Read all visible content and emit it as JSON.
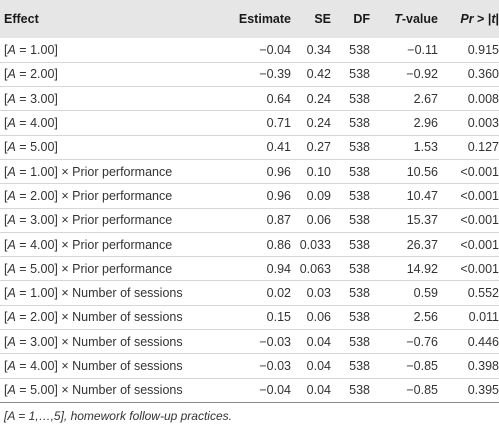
{
  "columns": {
    "effect": "Effect",
    "estimate": "Estimate",
    "se": "SE",
    "df": "DF",
    "t_italic": "T",
    "t_rest": "-value",
    "p_italic": "Pr",
    "p_mid": " > |",
    "p_t": "t",
    "p_end": "|"
  },
  "rows": [
    {
      "a_pre": "[",
      "a_var": "A",
      "a_post": " = 1.00]",
      "effect_rest": "",
      "estimate": "−0.04",
      "se": "0.34",
      "df": "538",
      "t": "−0.11",
      "p": "0.915"
    },
    {
      "a_pre": "[",
      "a_var": "A",
      "a_post": " = 2.00]",
      "effect_rest": "",
      "estimate": "−0.39",
      "se": "0.42",
      "df": "538",
      "t": "−0.92",
      "p": "0.360"
    },
    {
      "a_pre": "[",
      "a_var": "A",
      "a_post": " = 3.00]",
      "effect_rest": "",
      "estimate": "0.64",
      "se": "0.24",
      "df": "538",
      "t": "2.67",
      "p": "0.008"
    },
    {
      "a_pre": "[",
      "a_var": "A",
      "a_post": " = 4.00]",
      "effect_rest": "",
      "estimate": "0.71",
      "se": "0.24",
      "df": "538",
      "t": "2.96",
      "p": "0.003"
    },
    {
      "a_pre": "[",
      "a_var": "A",
      "a_post": " = 5.00]",
      "effect_rest": "",
      "estimate": "0.41",
      "se": "0.27",
      "df": "538",
      "t": "1.53",
      "p": "0.127"
    },
    {
      "a_pre": "[",
      "a_var": "A",
      "a_post": " = 1.00]",
      "effect_rest": " × Prior performance",
      "estimate": "0.96",
      "se": "0.10",
      "df": "538",
      "t": "10.56",
      "p": "<0.001"
    },
    {
      "a_pre": "[",
      "a_var": "A",
      "a_post": " = 2.00]",
      "effect_rest": " × Prior performance",
      "estimate": "0.96",
      "se": "0.09",
      "df": "538",
      "t": "10.47",
      "p": "<0.001"
    },
    {
      "a_pre": "[",
      "a_var": "A",
      "a_post": " = 3.00]",
      "effect_rest": " × Prior performance",
      "estimate": "0.87",
      "se": "0.06",
      "df": "538",
      "t": "15.37",
      "p": "<0.001"
    },
    {
      "a_pre": "[",
      "a_var": "A",
      "a_post": " = 4.00]",
      "effect_rest": " × Prior performance",
      "estimate": "0.86",
      "se": "0.033",
      "df": "538",
      "t": "26.37",
      "p": "<0.001"
    },
    {
      "a_pre": "[",
      "a_var": "A",
      "a_post": " = 5.00]",
      "effect_rest": " × Prior performance",
      "estimate": "0.94",
      "se": "0.063",
      "df": "538",
      "t": "14.92",
      "p": "<0.001"
    },
    {
      "a_pre": "[",
      "a_var": "A",
      "a_post": " = 1.00]",
      "effect_rest": " × Number of sessions",
      "estimate": "0.02",
      "se": "0.03",
      "df": "538",
      "t": "0.59",
      "p": "0.552"
    },
    {
      "a_pre": "[",
      "a_var": "A",
      "a_post": " = 2.00]",
      "effect_rest": " × Number of sessions",
      "estimate": "0.15",
      "se": "0.06",
      "df": "538",
      "t": "2.56",
      "p": "0.011"
    },
    {
      "a_pre": "[",
      "a_var": "A",
      "a_post": " = 3.00]",
      "effect_rest": " × Number of sessions",
      "estimate": "−0.03",
      "se": "0.04",
      "df": "538",
      "t": "−0.76",
      "p": "0.446"
    },
    {
      "a_pre": "[",
      "a_var": "A",
      "a_post": " = 4.00]",
      "effect_rest": " × Number of sessions",
      "estimate": "−0.03",
      "se": "0.04",
      "df": "538",
      "t": "−0.85",
      "p": "0.398"
    },
    {
      "a_pre": "[",
      "a_var": "A",
      "a_post": " = 5.00]",
      "effect_rest": " × Number of sessions",
      "estimate": "−0.04",
      "se": "0.04",
      "df": "538",
      "t": "−0.85",
      "p": "0.395"
    }
  ],
  "footnote": "[A = 1,…,5], homework follow-up practices.",
  "colors": {
    "header_bg": "#e6e6e6",
    "row_divider": "#d6d6d6",
    "text": "#333333"
  }
}
